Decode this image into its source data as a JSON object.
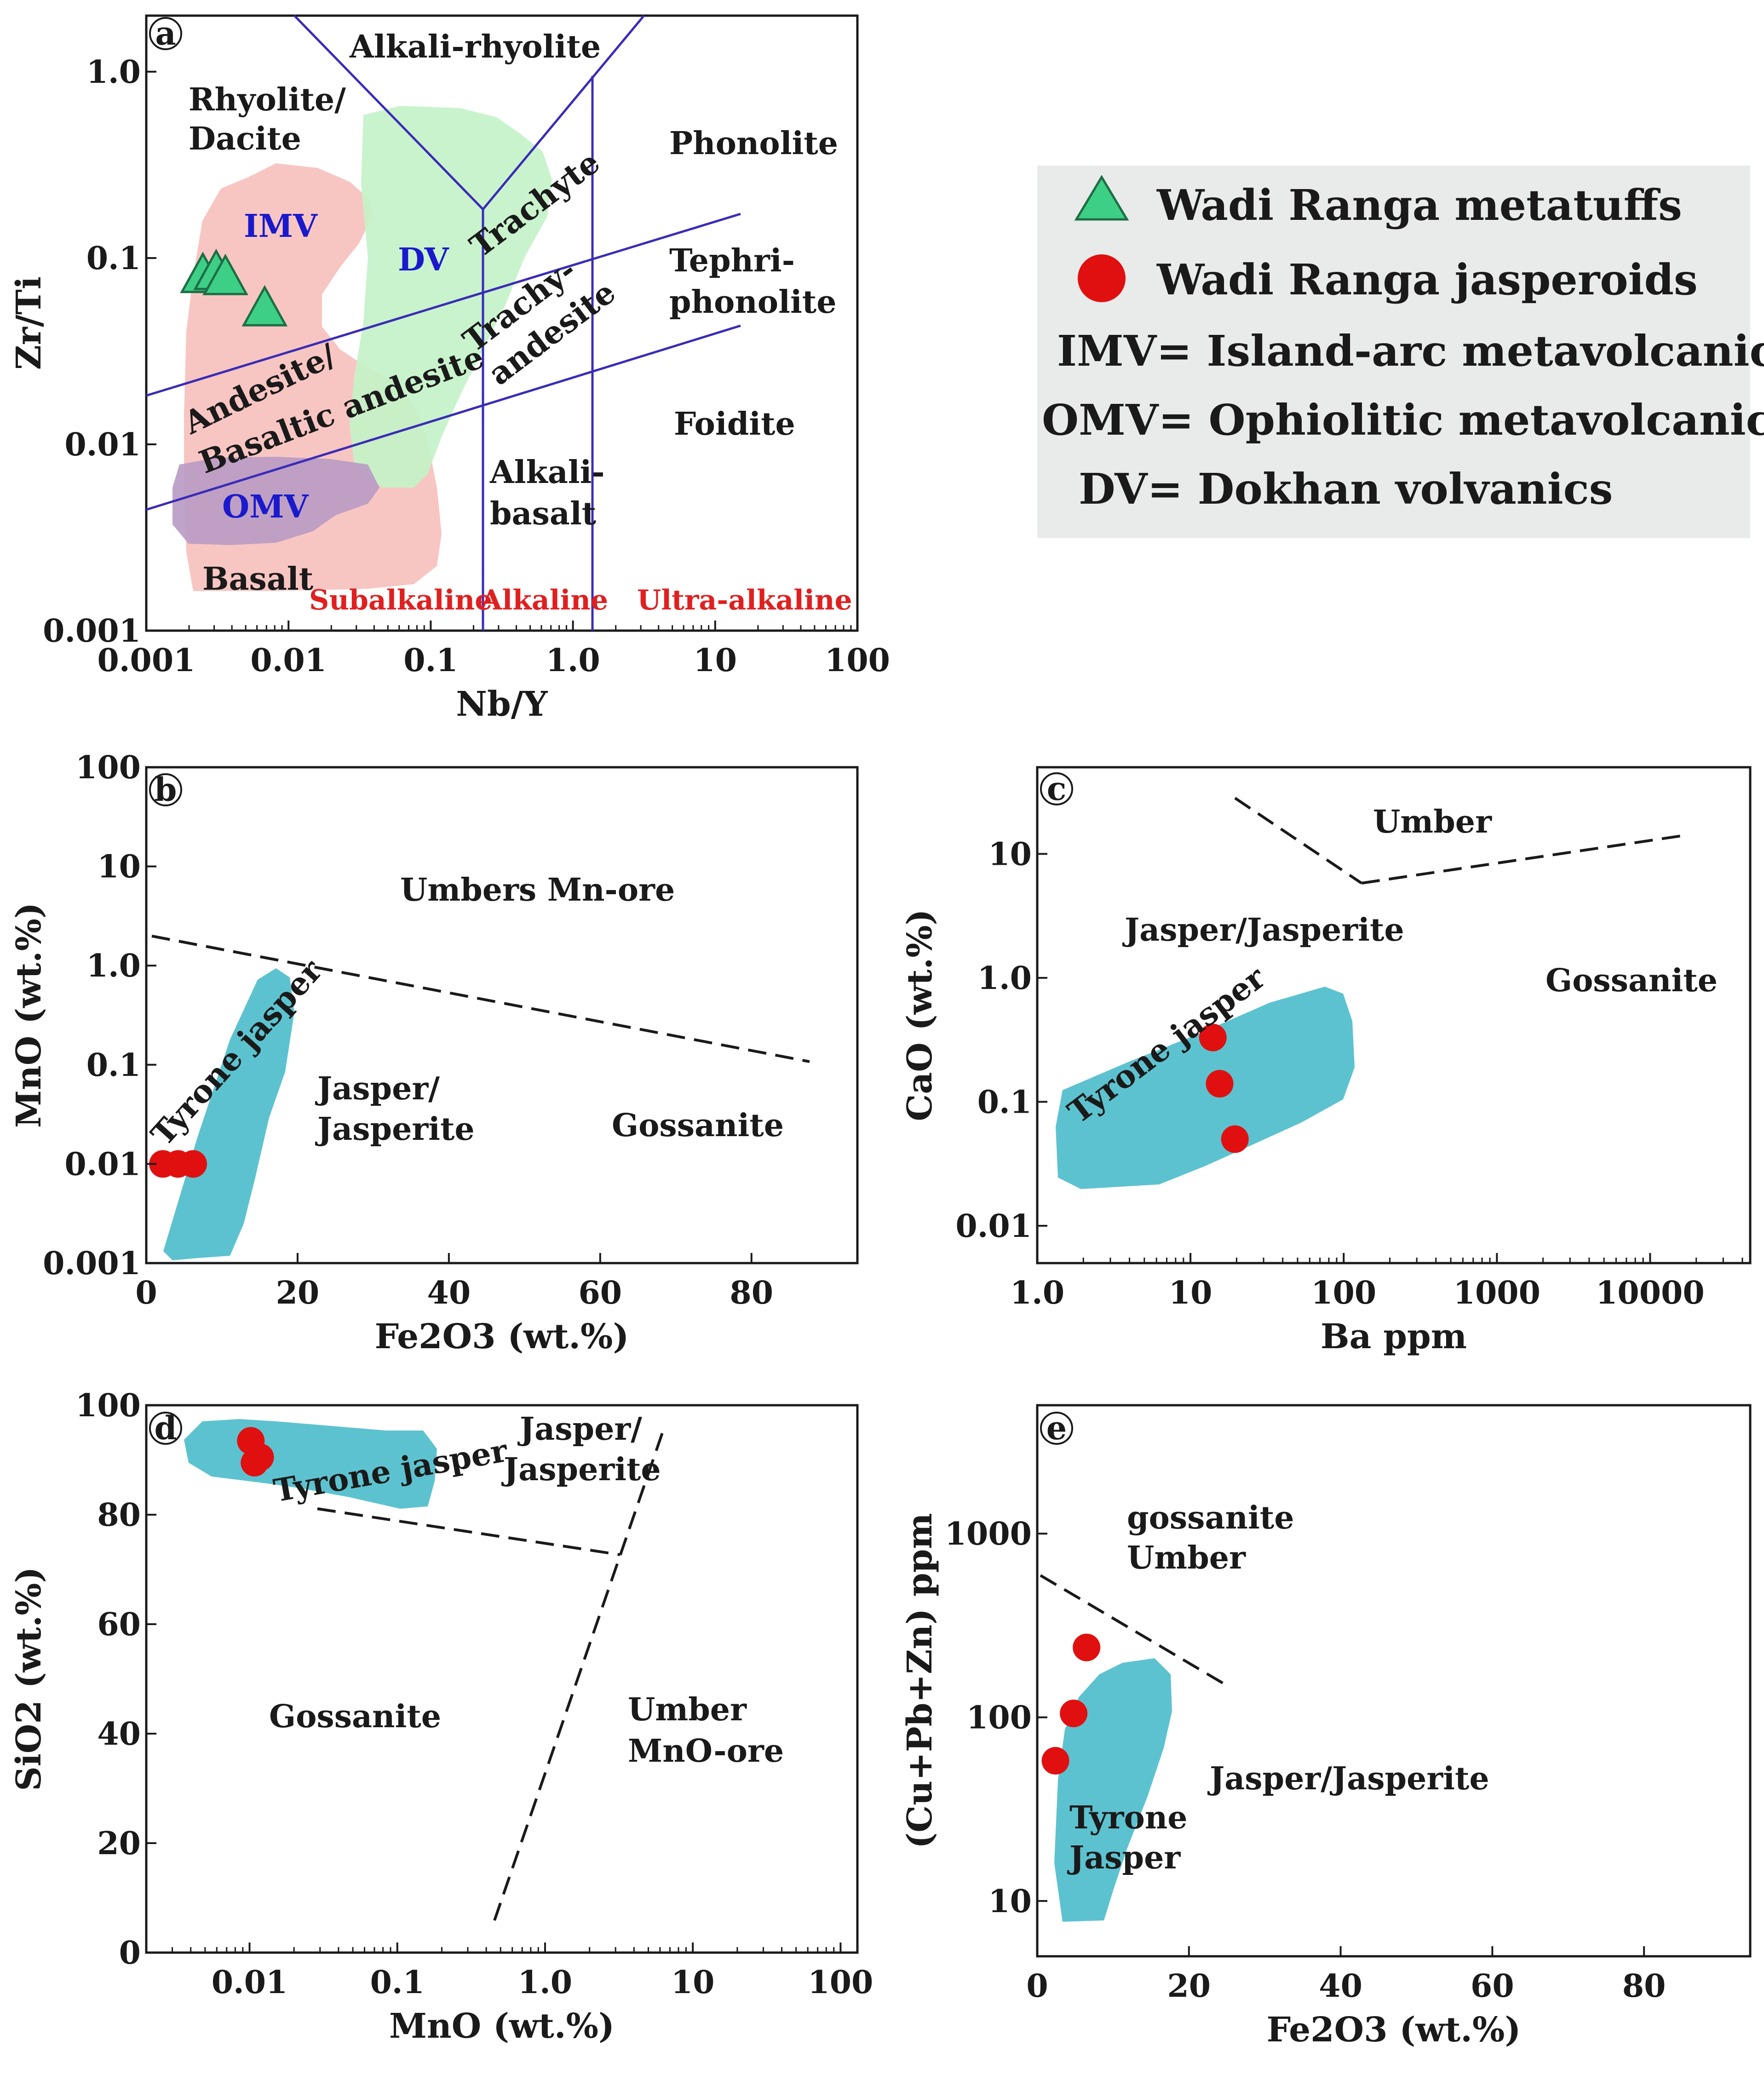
{
  "chart_data": [
    {
      "id": "a",
      "type": "scatter",
      "panel_label": "a",
      "xscale": "log",
      "yscale": "log",
      "xlim": [
        0.001,
        100
      ],
      "ylim": [
        0.001,
        2.0
      ],
      "xlabel": "Nb/Y",
      "ylabel": "Zr/Ti",
      "xticks": [
        "0.001",
        "0.01",
        "0.1",
        "1.0",
        "10",
        "100"
      ],
      "yticks": [
        "0.001",
        "0.01",
        "0.1",
        "1.0"
      ],
      "series": [
        {
          "name": "Wadi Ranga metatuffs",
          "marker": "triangle",
          "color": "#3ecf86",
          "points": [
            [
              0.0025,
              0.08
            ],
            [
              0.0031,
              0.083
            ],
            [
              0.0036,
              0.078
            ],
            [
              0.0068,
              0.053
            ]
          ]
        }
      ],
      "fields": [
        "Alkali-rhyolite",
        "Rhyolite/ Dacite",
        "Phonolite",
        "Trachyte",
        "Tephri- phonolite",
        "Trachy- andesite",
        "Andesite/ Basaltic andesite",
        "Foidite",
        "Alkali- basalt",
        "Basalt"
      ],
      "field_lines": [
        "Alkali-rhyolite",
        "Rhyolite/",
        "Dacite",
        "Phonolite",
        "Trachyte",
        "Tephri-",
        "phonolite",
        "Trachy-",
        "andesite",
        "Andesite/",
        "Basaltic andesite",
        "Foidite",
        "Alkali-",
        "basalt",
        "Basalt"
      ],
      "overlays": {
        "imv": "IMV",
        "dv": "DV",
        "omv": "OMV"
      },
      "series_labels": {
        "subalkaline": "Subalkaline",
        "alkaline": "Alkaline",
        "ultra": "Ultra-alkaline"
      }
    },
    {
      "id": "b",
      "type": "scatter",
      "panel_label": "b",
      "xscale": "linear",
      "yscale": "log",
      "xlim": [
        0,
        94
      ],
      "ylim": [
        0.001,
        100
      ],
      "xlabel": "Fe2O3 (wt.%)",
      "ylabel": "MnO (wt.%)",
      "xticks": [
        "0",
        "20",
        "40",
        "60",
        "80"
      ],
      "yticks": [
        "0.001",
        "0.01",
        "0.1",
        "1.0",
        "10",
        "100"
      ],
      "series": [
        {
          "name": "Wadi Ranga jasperoids",
          "marker": "circle",
          "color": "#e01010",
          "points": [
            [
              2.2,
              0.01
            ],
            [
              4.2,
              0.01
            ],
            [
              6.2,
              0.01
            ]
          ]
        }
      ],
      "regions": [
        "Umbers Mn-ore",
        "Jasper/ Jasperite",
        "Gossanite",
        "Tyrone jasper"
      ],
      "region_lines": [
        "Umbers Mn-ore",
        "Jasper/",
        "Jasperite",
        "Gossanite",
        "Tyrone jasper"
      ]
    },
    {
      "id": "c",
      "type": "scatter",
      "panel_label": "c",
      "xscale": "log",
      "yscale": "log",
      "xlim": [
        1.0,
        45000
      ],
      "ylim": [
        0.005,
        50
      ],
      "xlabel": "Ba ppm",
      "ylabel": "CaO (wt.%)",
      "xticks": [
        "1.0",
        "10",
        "100",
        "1000",
        "10000"
      ],
      "yticks": [
        "0.01",
        "0.1",
        "1.0",
        "10"
      ],
      "series": [
        {
          "name": "Wadi Ranga jasperoids",
          "marker": "circle",
          "color": "#e01010",
          "points": [
            [
              14,
              0.33
            ],
            [
              15.5,
              0.14
            ],
            [
              19.5,
              0.05
            ]
          ]
        }
      ],
      "regions": [
        "Umber",
        "Jasper/Jasperite",
        "Gossanite",
        "Tyrone jasper"
      ]
    },
    {
      "id": "d",
      "type": "scatter",
      "panel_label": "d",
      "xscale": "log",
      "yscale": "linear",
      "xlim": [
        0.002,
        130
      ],
      "ylim": [
        0,
        100
      ],
      "xlabel": "MnO (wt.%)",
      "ylabel": "SiO2 (wt.%)",
      "xticks": [
        "0.01",
        "0.1",
        "1.0",
        "10",
        "100"
      ],
      "yticks": [
        "0",
        "20",
        "40",
        "60",
        "80",
        "100"
      ],
      "series": [
        {
          "name": "Wadi Ranga jasperoids",
          "marker": "circle",
          "color": "#e01010",
          "points": [
            [
              0.0102,
              93.5
            ],
            [
              0.0108,
              89.5
            ],
            [
              0.0118,
              90.5
            ]
          ]
        }
      ],
      "regions": [
        "Jasper/ Jasperite",
        "Gossanite",
        "Umber MnO-ore",
        "Tyrone jasper"
      ],
      "region_lines": [
        "Jasper/",
        "Jasperite",
        "Gossanite",
        "Umber",
        "MnO-ore",
        "Tyrone jasper"
      ]
    },
    {
      "id": "e",
      "type": "scatter",
      "panel_label": "e",
      "xscale": "linear",
      "yscale": "log",
      "xlim": [
        0,
        94
      ],
      "ylim": [
        5,
        5000
      ],
      "xlabel": "Fe2O3 (wt.%)",
      "ylabel": "(Cu+Pb+Zn) ppm",
      "xticks": [
        "0",
        "20",
        "40",
        "60",
        "80"
      ],
      "yticks": [
        "10",
        "100",
        "1000"
      ],
      "series": [
        {
          "name": "Wadi Ranga jasperoids",
          "marker": "circle",
          "color": "#e01010",
          "points": [
            [
              6.5,
              240
            ],
            [
              4.8,
              105
            ],
            [
              2.4,
              58
            ]
          ]
        }
      ],
      "regions": [
        "gossanite Umber",
        "Jasper/Jasperite",
        "Tyrone Jasper"
      ],
      "region_lines": [
        "gossanite",
        "Umber",
        "Jasper/Jasperite",
        "Tyrone",
        "Jasper"
      ]
    }
  ],
  "legend": {
    "entries": [
      {
        "marker": "triangle",
        "color": "#3ecf86",
        "label": "Wadi Ranga metatuffs"
      },
      {
        "marker": "circle",
        "color": "#e01010",
        "label": "Wadi Ranga jasperoids"
      }
    ],
    "abbreviations": [
      "IMV= Island-arc metavolcanics",
      "OMV= Ophiolitic metavolcanics",
      "DV= Dokhan volvanics"
    ]
  },
  "colors": {
    "imv": "#f8c6c2",
    "dv": "#c4f2c8",
    "omv": "#b89ac4",
    "tyrone": "#5dc2cf",
    "lines": "#3a2cb8",
    "legend_bg": "#e9ebea"
  }
}
